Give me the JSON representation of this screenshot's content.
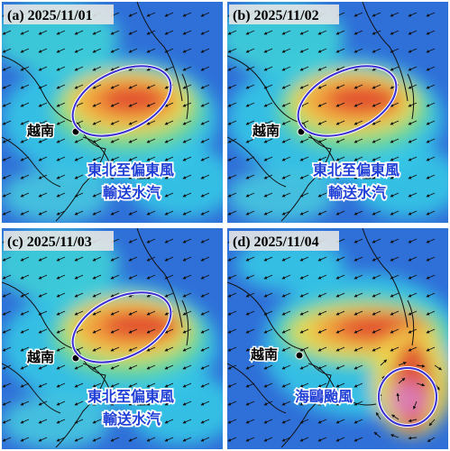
{
  "panels": [
    {
      "title": "(a) 2025/11/01",
      "place": "越南",
      "labels": [
        "東北至偏東風",
        "輸送水汽"
      ]
    },
    {
      "title": "(b) 2025/11/02",
      "place": "越南",
      "labels": [
        "東北至偏東風",
        "輸送水汽"
      ]
    },
    {
      "title": "(c) 2025/11/03",
      "place": "越南",
      "labels": [
        "東北至偏東風",
        "輸送水汽"
      ]
    },
    {
      "title": "(d) 2025/11/04",
      "place": "越南",
      "labels": [
        "海鷗颱風"
      ]
    }
  ]
}
